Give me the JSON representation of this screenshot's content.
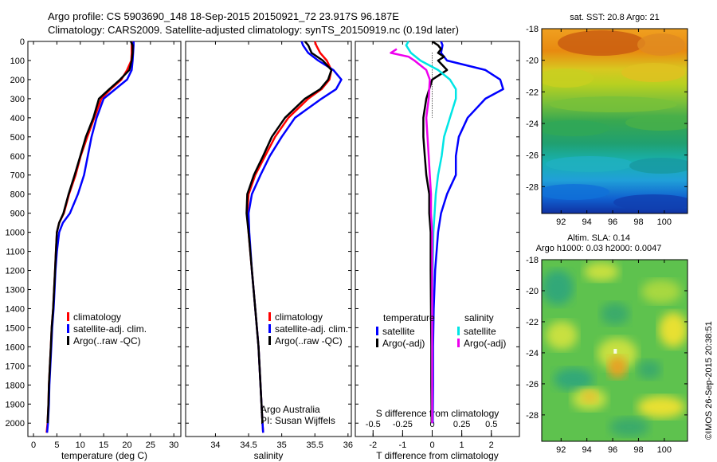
{
  "header": {
    "line1": "Argo profile: CS 5903690_148 18-Sep-2015 20150921_72 23.917S 96.187E",
    "line2": "Climatology: CARS2009. Satellite-adjusted climatology: synTS_20150919.nc (0.19d later)"
  },
  "footer": {
    "credit": "©IMOS 26-Sep-2015 20:38:51"
  },
  "colors": {
    "climatology": "#ff0000",
    "satellite": "#0000ff",
    "argo": "#000000",
    "sal_satellite": "#00e5e5",
    "sal_argo": "#ee00ee"
  },
  "chart_data": [
    {
      "type": "line",
      "title": "",
      "xlabel": "temperature (deg C)",
      "ylabel": "",
      "xlim": [
        -1.2,
        31.5
      ],
      "ylim": [
        2070,
        0
      ],
      "xticks": [
        "0",
        "5",
        "10",
        "15",
        "20",
        "25",
        "30"
      ],
      "yticks": [
        "0",
        "100",
        "200",
        "300",
        "400",
        "500",
        "600",
        "700",
        "800",
        "900",
        "1000",
        "1100",
        "1200",
        "1300",
        "1400",
        "1500",
        "1600",
        "1700",
        "1800",
        "1900",
        "2000"
      ],
      "legend": [
        "climatology",
        "satellite-adj. clim.",
        "Argo(..raw -QC)"
      ],
      "legend_position": "lower-right",
      "series": [
        {
          "name": "climatology",
          "color": "#ff0000",
          "points": [
            [
              21.0,
              0
            ],
            [
              21.0,
              20
            ],
            [
              21.0,
              60
            ],
            [
              20.9,
              100
            ],
            [
              20.0,
              150
            ],
            [
              18.8,
              200
            ],
            [
              16.5,
              250
            ],
            [
              14.5,
              300
            ],
            [
              13.0,
              400
            ],
            [
              11.5,
              500
            ],
            [
              10.1,
              600
            ],
            [
              9.0,
              700
            ],
            [
              7.6,
              800
            ],
            [
              6.5,
              900
            ],
            [
              5.5,
              950
            ],
            [
              5.0,
              1000
            ],
            [
              4.8,
              1100
            ],
            [
              4.6,
              1200
            ],
            [
              4.4,
              1300
            ],
            [
              4.2,
              1400
            ],
            [
              3.9,
              1500
            ],
            [
              3.7,
              1600
            ],
            [
              3.5,
              1700
            ],
            [
              3.3,
              1800
            ],
            [
              3.2,
              1900
            ],
            [
              3.0,
              2000
            ],
            [
              2.8,
              2050
            ]
          ]
        },
        {
          "name": "satellite-adj. clim.",
          "color": "#0000ff",
          "points": [
            [
              21.4,
              0
            ],
            [
              21.4,
              20
            ],
            [
              21.3,
              60
            ],
            [
              21.2,
              100
            ],
            [
              21.0,
              150
            ],
            [
              20.0,
              200
            ],
            [
              17.5,
              250
            ],
            [
              15.0,
              300
            ],
            [
              13.5,
              400
            ],
            [
              12.4,
              500
            ],
            [
              11.6,
              600
            ],
            [
              10.8,
              700
            ],
            [
              9.5,
              800
            ],
            [
              7.8,
              900
            ],
            [
              6.3,
              950
            ],
            [
              5.5,
              1000
            ],
            [
              5.0,
              1100
            ],
            [
              4.7,
              1200
            ],
            [
              4.5,
              1300
            ],
            [
              4.3,
              1400
            ],
            [
              4.0,
              1500
            ],
            [
              3.8,
              1600
            ],
            [
              3.6,
              1700
            ],
            [
              3.4,
              1800
            ],
            [
              3.3,
              1900
            ],
            [
              3.1,
              2000
            ],
            [
              2.9,
              2050
            ]
          ]
        },
        {
          "name": "Argo(..raw -QC)",
          "color": "#000000",
          "points": [
            [
              20.8,
              0
            ],
            [
              21.2,
              20
            ],
            [
              21.2,
              60
            ],
            [
              21.0,
              100
            ],
            [
              20.5,
              150
            ],
            [
              18.5,
              200
            ],
            [
              16.2,
              250
            ],
            [
              14.0,
              300
            ],
            [
              12.8,
              400
            ],
            [
              11.2,
              500
            ],
            [
              10.0,
              600
            ],
            [
              8.8,
              700
            ],
            [
              7.5,
              800
            ],
            [
              6.4,
              900
            ],
            [
              5.5,
              950
            ],
            [
              5.0,
              1000
            ],
            [
              4.8,
              1100
            ],
            [
              4.6,
              1200
            ],
            [
              4.4,
              1300
            ],
            [
              4.2,
              1400
            ],
            [
              3.9,
              1500
            ],
            [
              3.7,
              1600
            ],
            [
              3.5,
              1700
            ],
            [
              3.3,
              1800
            ],
            [
              3.2,
              1900
            ],
            [
              3.0,
              2000
            ]
          ]
        }
      ]
    },
    {
      "type": "line",
      "title": "",
      "xlabel": "salinity",
      "ylabel": "",
      "xlim": [
        33.55,
        36.05
      ],
      "ylim": [
        2070,
        0
      ],
      "xticks": [
        "34",
        "34.5",
        "35",
        "35.5",
        "36"
      ],
      "yticks": [],
      "legend": [
        "climatology",
        "satellite-adj. clim.",
        "Argo(..raw -QC)"
      ],
      "legend_position": "lower-right",
      "annotations": [
        "Argo Australia",
        "PI: Susan Wijffels"
      ],
      "series": [
        {
          "name": "climatology",
          "color": "#ff0000",
          "points": [
            [
              35.5,
              0
            ],
            [
              35.52,
              20
            ],
            [
              35.58,
              60
            ],
            [
              35.68,
              100
            ],
            [
              35.75,
              150
            ],
            [
              35.72,
              200
            ],
            [
              35.6,
              250
            ],
            [
              35.4,
              300
            ],
            [
              35.1,
              400
            ],
            [
              34.9,
              500
            ],
            [
              34.75,
              600
            ],
            [
              34.6,
              700
            ],
            [
              34.5,
              800
            ],
            [
              34.48,
              900
            ],
            [
              34.5,
              1000
            ],
            [
              34.55,
              1200
            ],
            [
              34.6,
              1400
            ],
            [
              34.65,
              1600
            ],
            [
              34.68,
              1800
            ],
            [
              34.71,
              2000
            ],
            [
              34.72,
              2050
            ]
          ]
        },
        {
          "name": "satellite-adj. clim.",
          "color": "#0000ff",
          "points": [
            [
              35.3,
              0
            ],
            [
              35.32,
              20
            ],
            [
              35.4,
              60
            ],
            [
              35.55,
              100
            ],
            [
              35.78,
              150
            ],
            [
              35.9,
              200
            ],
            [
              35.82,
              250
            ],
            [
              35.6,
              300
            ],
            [
              35.2,
              400
            ],
            [
              35.0,
              500
            ],
            [
              34.82,
              600
            ],
            [
              34.68,
              700
            ],
            [
              34.55,
              800
            ],
            [
              34.5,
              900
            ],
            [
              34.51,
              1000
            ],
            [
              34.55,
              1200
            ],
            [
              34.6,
              1400
            ],
            [
              34.65,
              1600
            ],
            [
              34.68,
              1800
            ],
            [
              34.71,
              2000
            ],
            [
              34.72,
              2050
            ]
          ]
        },
        {
          "name": "Argo(..raw -QC)",
          "color": "#000000",
          "points": [
            [
              35.35,
              0
            ],
            [
              35.4,
              20
            ],
            [
              35.45,
              60
            ],
            [
              35.62,
              100
            ],
            [
              35.75,
              150
            ],
            [
              35.7,
              200
            ],
            [
              35.58,
              250
            ],
            [
              35.35,
              300
            ],
            [
              35.05,
              400
            ],
            [
              34.85,
              500
            ],
            [
              34.72,
              600
            ],
            [
              34.58,
              700
            ],
            [
              34.48,
              800
            ],
            [
              34.47,
              900
            ],
            [
              34.5,
              1000
            ],
            [
              34.55,
              1200
            ],
            [
              34.6,
              1400
            ],
            [
              34.65,
              1600
            ],
            [
              34.68,
              1800
            ],
            [
              34.71,
              2000
            ]
          ]
        }
      ]
    },
    {
      "type": "line",
      "title": "",
      "xlabel": "T difference from climatology",
      "x2label": "S difference from climatology",
      "ylabel": "",
      "xlim": [
        -2.6,
        2.95
      ],
      "x2lim": [
        -0.65,
        0.7375
      ],
      "ylim": [
        2070,
        0
      ],
      "xticks": [
        "-2",
        "-1",
        "0",
        "1",
        "2"
      ],
      "x2ticks": [
        "-0.5",
        "-0.25",
        "0",
        "0.25",
        "0.5"
      ],
      "yticks": [],
      "legend_title_temperature": "temperature",
      "legend_title_salinity": "salinity",
      "legend": [
        "satellite",
        "Argo(-adj)",
        "satellite",
        "Argo(-adj)"
      ],
      "legend_position": "lower-center",
      "series": [
        {
          "name": "temperature satellite",
          "color": "#0000ff",
          "axis": "T",
          "points": [
            [
              0.3,
              0
            ],
            [
              0.35,
              20
            ],
            [
              0.3,
              60
            ],
            [
              0.5,
              100
            ],
            [
              1.8,
              150
            ],
            [
              2.3,
              200
            ],
            [
              2.4,
              250
            ],
            [
              1.8,
              300
            ],
            [
              1.2,
              400
            ],
            [
              0.9,
              500
            ],
            [
              0.8,
              600
            ],
            [
              0.8,
              700
            ],
            [
              0.5,
              800
            ],
            [
              0.3,
              900
            ],
            [
              0.2,
              1000
            ],
            [
              0.1,
              1200
            ],
            [
              0.05,
              1400
            ],
            [
              0.03,
              1600
            ],
            [
              0.03,
              1800
            ],
            [
              0.02,
              2000
            ]
          ]
        },
        {
          "name": "temperature Argo(-adj)",
          "color": "#000000",
          "axis": "T",
          "points": [
            [
              0.0,
              0
            ],
            [
              0.2,
              20
            ],
            [
              0.3,
              40
            ],
            [
              0.2,
              60
            ],
            [
              0.4,
              80
            ],
            [
              0.2,
              100
            ],
            [
              0.5,
              150
            ],
            [
              0.0,
              200
            ],
            [
              -0.2,
              300
            ],
            [
              -0.3,
              400
            ],
            [
              -0.3,
              500
            ],
            [
              -0.25,
              600
            ],
            [
              -0.2,
              700
            ],
            [
              -0.1,
              800
            ],
            [
              -0.1,
              900
            ],
            [
              -0.05,
              1000
            ],
            [
              -0.05,
              1200
            ],
            [
              -0.04,
              1400
            ],
            [
              -0.03,
              1600
            ],
            [
              -0.03,
              1800
            ],
            [
              -0.02,
              2000
            ]
          ]
        },
        {
          "name": "salinity satellite",
          "color": "#00e5e5",
          "axis": "S",
          "points": [
            [
              -0.2,
              0
            ],
            [
              -0.22,
              20
            ],
            [
              -0.18,
              60
            ],
            [
              -0.1,
              100
            ],
            [
              0.05,
              150
            ],
            [
              0.15,
              200
            ],
            [
              0.2,
              250
            ],
            [
              0.2,
              300
            ],
            [
              0.15,
              400
            ],
            [
              0.1,
              500
            ],
            [
              0.08,
              600
            ],
            [
              0.05,
              700
            ],
            [
              0.03,
              800
            ],
            [
              0.02,
              900
            ],
            [
              0.01,
              1000
            ],
            [
              0.005,
              1200
            ],
            [
              0.0,
              1400
            ],
            [
              0.0,
              1600
            ],
            [
              0.0,
              1800
            ],
            [
              0.0,
              2000
            ]
          ]
        },
        {
          "name": "salinity Argo(-adj)",
          "color": "#ee00ee",
          "axis": "S",
          "points": [
            [
              -0.3,
              40
            ],
            [
              -0.35,
              60
            ],
            [
              -0.2,
              80
            ],
            [
              -0.15,
              100
            ],
            [
              -0.05,
              150
            ],
            [
              -0.02,
              200
            ],
            [
              -0.03,
              300
            ],
            [
              -0.05,
              400
            ],
            [
              -0.04,
              500
            ],
            [
              -0.03,
              600
            ],
            [
              -0.02,
              700
            ],
            [
              -0.01,
              800
            ],
            [
              -0.01,
              900
            ],
            [
              0.0,
              1000
            ],
            [
              0.0,
              1200
            ],
            [
              0.0,
              1400
            ],
            [
              0.0,
              1600
            ],
            [
              0.0,
              1800
            ],
            [
              0.0,
              2000
            ]
          ]
        }
      ]
    },
    {
      "type": "heatmap",
      "title": "sat. SST: 20.8 Argo: 21",
      "xlim": [
        90.5,
        101.8
      ],
      "ylim": [
        -29.7,
        -18
      ],
      "xticks": [
        "92",
        "94",
        "96",
        "98",
        "100"
      ],
      "yticks": [
        "-18",
        "-20",
        "-22",
        "-24",
        "-26",
        "-28"
      ]
    },
    {
      "type": "heatmap",
      "title": "Altim. SLA: 0.14",
      "subtitle": "Argo h1000: 0.03 h2000: 0.0047",
      "xlim": [
        90.5,
        101.8
      ],
      "ylim": [
        -29.7,
        -18
      ],
      "xticks": [
        "92",
        "94",
        "96",
        "98",
        "100"
      ],
      "yticks": [
        "-18",
        "-20",
        "-22",
        "-24",
        "-26",
        "-28"
      ]
    }
  ]
}
